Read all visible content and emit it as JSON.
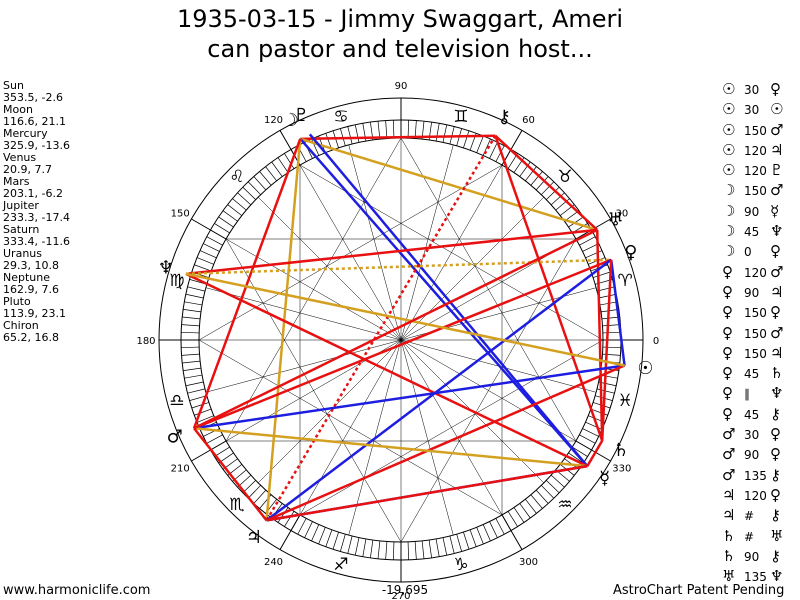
{
  "title": {
    "line1": "1935-03-15 - Jimmy Swaggart, Ameri",
    "line2": "can pastor and television host..."
  },
  "planets": [
    {
      "name": "Sun",
      "values": "353.5, -2.6",
      "glyph": "☉",
      "lon": 353.5
    },
    {
      "name": "Moon",
      "values": "116.6, 21.1",
      "glyph": "☽",
      "lon": 116.6
    },
    {
      "name": "Mercury",
      "values": "325.9, -13.6",
      "glyph": "☿",
      "lon": 325.9
    },
    {
      "name": "Venus",
      "values": "20.9, 7.7",
      "glyph": "♀",
      "lon": 20.9
    },
    {
      "name": "Mars",
      "values": "203.1, -6.2",
      "glyph": "♂",
      "lon": 203.1
    },
    {
      "name": "Jupiter",
      "values": "233.3, -17.4",
      "glyph": "♃",
      "lon": 233.3
    },
    {
      "name": "Saturn",
      "values": "333.4, -11.6",
      "glyph": "♄",
      "lon": 333.4
    },
    {
      "name": "Uranus",
      "values": "29.3, 10.8",
      "glyph": "♅",
      "lon": 29.3
    },
    {
      "name": "Neptune",
      "values": "162.9, 7.6",
      "glyph": "♆",
      "lon": 162.9
    },
    {
      "name": "Pluto",
      "values": "113.9, 23.1",
      "glyph": "♇",
      "lon": 113.9
    },
    {
      "name": "Chiron",
      "values": "65.2, 16.8",
      "glyph": "⚷",
      "lon": 65.2
    }
  ],
  "aspects": [
    {
      "a": "☉",
      "angle": "30",
      "b": "♀"
    },
    {
      "a": "☉",
      "angle": "30",
      "b": "☉"
    },
    {
      "a": "☉",
      "angle": "150",
      "b": "♂"
    },
    {
      "a": "☉",
      "angle": "120",
      "b": "♃"
    },
    {
      "a": "☉",
      "angle": "120",
      "b": "♇"
    },
    {
      "a": "☽",
      "angle": "150",
      "b": "♂"
    },
    {
      "a": "☽",
      "angle": "90",
      "b": "☿"
    },
    {
      "a": "☽",
      "angle": "45",
      "b": "♆"
    },
    {
      "a": "☽",
      "angle": "0",
      "b": "♀"
    },
    {
      "a": "♀",
      "angle": "120",
      "b": "♂"
    },
    {
      "a": "♀",
      "angle": "90",
      "b": "♃"
    },
    {
      "a": "♀",
      "angle": "150",
      "b": "♀"
    },
    {
      "a": "♀",
      "angle": "150",
      "b": "♂"
    },
    {
      "a": "♀",
      "angle": "150",
      "b": "♃"
    },
    {
      "a": "♀",
      "angle": "45",
      "b": "♄"
    },
    {
      "a": "♀",
      "angle": "∥",
      "b": "♆"
    },
    {
      "a": "♀",
      "angle": "45",
      "b": "⚷"
    },
    {
      "a": "♂",
      "angle": "30",
      "b": "♀"
    },
    {
      "a": "♂",
      "angle": "90",
      "b": "♀"
    },
    {
      "a": "♂",
      "angle": "135",
      "b": "⚷"
    },
    {
      "a": "♃",
      "angle": "120",
      "b": "♀"
    },
    {
      "a": "♃",
      "angle": "#",
      "b": "⚷"
    },
    {
      "a": "♄",
      "angle": "#",
      "b": "♅"
    },
    {
      "a": "♄",
      "angle": "90",
      "b": "⚷"
    },
    {
      "a": "♅",
      "angle": "135",
      "b": "♆"
    }
  ],
  "degree_labels": [
    {
      "text": "0",
      "deg": 0
    },
    {
      "text": "30",
      "deg": 30
    },
    {
      "text": "60",
      "deg": 60
    },
    {
      "text": "90",
      "deg": 90
    },
    {
      "text": "120",
      "deg": 120
    },
    {
      "text": "150",
      "deg": 150
    },
    {
      "text": "180",
      "deg": 180
    },
    {
      "text": "210",
      "deg": 210
    },
    {
      "text": "240",
      "deg": 240
    },
    {
      "text": "270",
      "deg": 270
    },
    {
      "text": "300",
      "deg": 300
    },
    {
      "text": "330",
      "deg": 330
    }
  ],
  "signs": [
    {
      "glyph": "♈",
      "deg": 15
    },
    {
      "glyph": "♉",
      "deg": 45
    },
    {
      "glyph": "♊",
      "deg": 75
    },
    {
      "glyph": "♋",
      "deg": 105
    },
    {
      "glyph": "♌",
      "deg": 135
    },
    {
      "glyph": "♍",
      "deg": 165
    },
    {
      "glyph": "♎",
      "deg": 195
    },
    {
      "glyph": "♏",
      "deg": 225
    },
    {
      "glyph": "♐",
      "deg": 255
    },
    {
      "glyph": "♑",
      "deg": 285
    },
    {
      "glyph": "♒",
      "deg": 315
    },
    {
      "glyph": "♓",
      "deg": 345
    }
  ],
  "aspect_lines": [
    {
      "a": "Moon",
      "b": "Chiron",
      "color": "red"
    },
    {
      "a": "Moon",
      "b": "Uranus",
      "color": "gold"
    },
    {
      "a": "Moon",
      "b": "Mercury",
      "color": "blue"
    },
    {
      "a": "Moon",
      "b": "Jupiter",
      "color": "gold"
    },
    {
      "a": "Moon",
      "b": "Mars",
      "color": "red"
    },
    {
      "a": "Pluto",
      "b": "Mercury",
      "color": "blue"
    },
    {
      "a": "Chiron",
      "b": "Saturn",
      "color": "red"
    },
    {
      "a": "Chiron",
      "b": "Jupiter",
      "color": "red",
      "dash": true
    },
    {
      "a": "Chiron",
      "b": "Uranus",
      "color": "red"
    },
    {
      "a": "Neptune",
      "b": "Uranus",
      "color": "red"
    },
    {
      "a": "Neptune",
      "b": "Venus",
      "color": "gold",
      "dash": true
    },
    {
      "a": "Neptune",
      "b": "Mercury",
      "color": "red"
    },
    {
      "a": "Uranus",
      "b": "Saturn",
      "color": "red"
    },
    {
      "a": "Venus",
      "b": "Sun",
      "color": "blue"
    },
    {
      "a": "Venus",
      "b": "Mars",
      "color": "red"
    },
    {
      "a": "Venus",
      "b": "Jupiter",
      "color": "blue"
    },
    {
      "a": "Venus",
      "b": "Saturn",
      "color": "red"
    },
    {
      "a": "Sun",
      "b": "Mars",
      "color": "blue"
    },
    {
      "a": "Sun",
      "b": "Jupiter",
      "color": "red"
    },
    {
      "a": "Sun",
      "b": "Neptune",
      "color": "gold"
    },
    {
      "a": "Mars",
      "b": "Mercury",
      "color": "gold"
    },
    {
      "a": "Mars",
      "b": "Jupiter",
      "color": "red"
    },
    {
      "a": "Mars",
      "b": "Uranus",
      "color": "red"
    },
    {
      "a": "Jupiter",
      "b": "Mercury",
      "color": "blue"
    },
    {
      "a": "Mercury",
      "b": "Saturn",
      "color": "red"
    },
    {
      "a": "Mercury",
      "b": "Jupiter",
      "color": "red"
    }
  ],
  "colors": {
    "red": "#e81010",
    "blue": "#1e1ee0",
    "gold": "#d4a020",
    "wheel": "#000000"
  },
  "center_value": "-19,695",
  "footer": {
    "left": "www.harmoniclife.com",
    "right": "AstroChart Patent Pending"
  }
}
